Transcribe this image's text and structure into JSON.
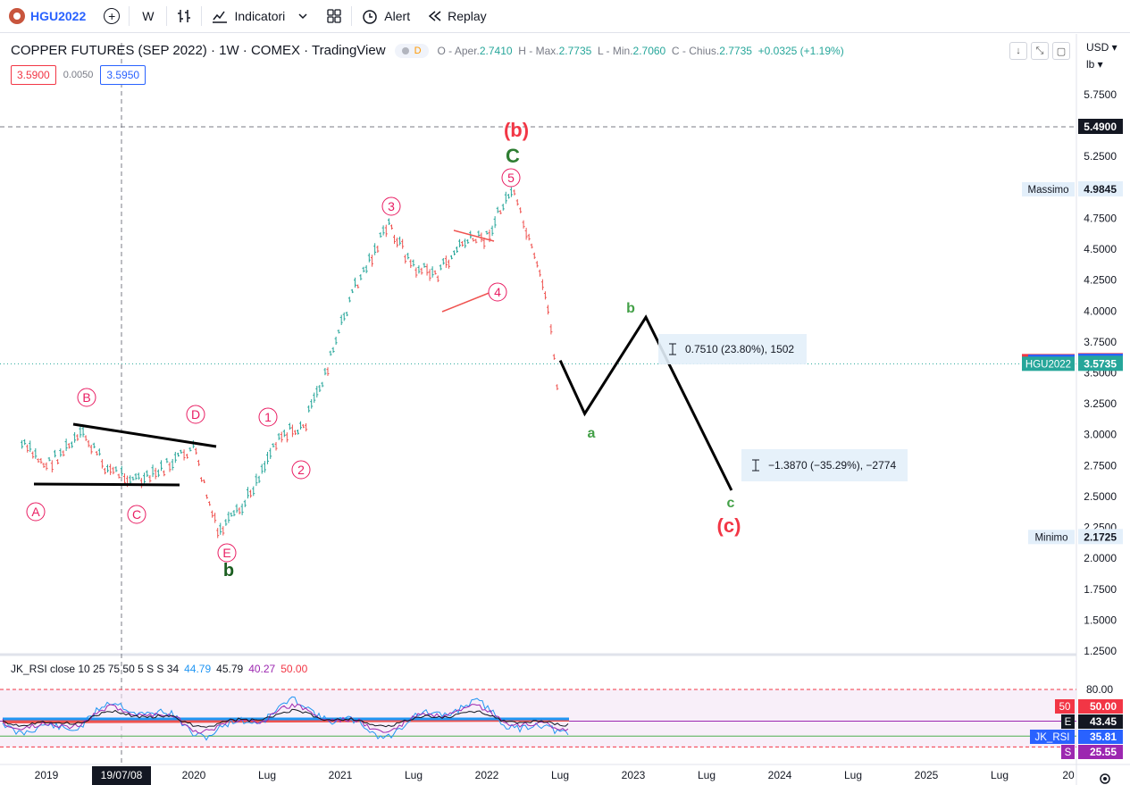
{
  "toolbar": {
    "symbol": "HGU2022",
    "interval": "W",
    "indicators_label": "Indicatori",
    "alert_label": "Alert",
    "replay_label": "Replay"
  },
  "legend": {
    "title": "COPPER FUTURES (SEP 2022) · 1W · COMEX · TradingView",
    "badge": "D",
    "ohlc": [
      {
        "label": "O - Aper.",
        "value": "2.7410"
      },
      {
        "label": "H - Max.",
        "value": "2.7735"
      },
      {
        "label": "L - Min.",
        "value": "2.7060"
      },
      {
        "label": "C - Chius.",
        "value": "2.7735"
      }
    ],
    "change": "+0.0325 (+1.19%)"
  },
  "bid_ask": {
    "bid": "3.5900",
    "spread": "0.0050",
    "ask": "3.5950"
  },
  "price_axis": {
    "currency": "USD",
    "unit": "lb",
    "ticks": [
      "5.7500",
      "5.2500",
      "5.0000",
      "4.7500",
      "4.5000",
      "4.2500",
      "4.0000",
      "3.7500",
      "3.5000",
      "3.2500",
      "3.0000",
      "2.7500",
      "2.5000",
      "2.2500",
      "2.0000",
      "1.7500",
      "1.5000",
      "1.2500"
    ]
  },
  "price_tags": [
    {
      "label": "",
      "value": "5.4900",
      "color": "#131722",
      "price": 5.49
    },
    {
      "label": "Massimo",
      "value": "4.9845",
      "color": "#e3effa",
      "price": 4.9845
    },
    {
      "label": "Lettera",
      "value": "3.5950",
      "color": "#f23645",
      "price": 3.595
    },
    {
      "label": "Denaro",
      "value": "3.5900",
      "color": "#2962ff",
      "price": 3.59
    },
    {
      "label": "HGU2022",
      "value": "3.5735",
      "color": "#26a69a",
      "price": 3.5735
    },
    {
      "label": "Minimo",
      "value": "2.1725",
      "color": "#e3effa",
      "price": 2.1725
    }
  ],
  "time_axis": {
    "labels": [
      "2019",
      "2020",
      "Lug",
      "2021",
      "Lug",
      "2022",
      "Lug",
      "2023",
      "Lug",
      "2024",
      "Lug",
      "2025",
      "Lug",
      "20"
    ],
    "crosshair_label": "19/07/08"
  },
  "wave_labels": {
    "circled_pink": [
      "A",
      "B",
      "C",
      "D",
      "E",
      "1",
      "2",
      "3",
      "4",
      "5"
    ],
    "big_red_b": "(b)",
    "big_green_C": "C",
    "green_b_small": "b",
    "green_a": "a",
    "green_b_proj": "b",
    "green_c_proj": "c",
    "big_red_c": "(c)"
  },
  "measure_boxes": [
    {
      "text": "0.7510 (23.80%), 1502"
    },
    {
      "text": "−1.3870 (−35.29%), −2774"
    }
  ],
  "rsi": {
    "legend": "JK_RSI close 10 25 75 50 5 S S 34",
    "values": [
      {
        "v": "44.79",
        "color": "#2196f3"
      },
      {
        "v": "45.79",
        "color": "#131722"
      },
      {
        "v": "40.27",
        "color": "#9c27b0"
      },
      {
        "v": "50.00",
        "color": "#f23645"
      }
    ],
    "axis_tick": "80.00",
    "tags": [
      {
        "label": "50",
        "value": "50.00",
        "color": "#f23645"
      },
      {
        "label": "E",
        "value": "43.45",
        "color": "#131722"
      },
      {
        "label": "JK_RSI",
        "value": "35.81",
        "color": "#2962ff"
      },
      {
        "label": "S",
        "value": "25.55",
        "color": "#9c27b0"
      }
    ]
  },
  "chart_data": {
    "type": "line",
    "title": "COPPER FUTURES (SEP 2022) · 1W · COMEX · TradingView",
    "xlabel": "",
    "ylabel": "",
    "ylim": [
      1.25,
      5.75
    ],
    "series": [
      {
        "x": [
          "2018-11",
          "2019-01",
          "2019-04",
          "2019-06",
          "2019-09",
          "2019-12",
          "2020-01",
          "2020-03",
          "2020-05",
          "2020-08",
          "2020-10",
          "2020-12",
          "2021-02",
          "2021-05",
          "2021-07",
          "2021-09",
          "2021-11",
          "2022-01",
          "2022-03",
          "2022-04",
          "2022-06",
          "2022-07"
        ],
        "values": [
          2.92,
          2.75,
          3.0,
          2.72,
          2.62,
          2.82,
          2.9,
          2.2,
          2.4,
          3.0,
          3.05,
          3.55,
          4.15,
          4.7,
          4.35,
          4.3,
          4.55,
          4.6,
          4.98,
          4.7,
          4.05,
          3.2
        ]
      },
      {
        "x": [
          "2022-07",
          "2022-09",
          "2023-02",
          "2023-09"
        ],
        "values": [
          3.6,
          3.17,
          3.95,
          2.55
        ]
      }
    ]
  }
}
